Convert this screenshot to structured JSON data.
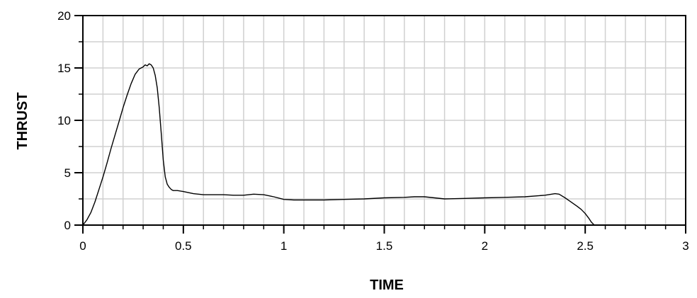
{
  "chart_data": {
    "type": "line",
    "title": "",
    "xlabel": "TIME",
    "ylabel": "THRUST",
    "xlim": [
      0,
      3
    ],
    "ylim": [
      0,
      20
    ],
    "x_ticks": [
      0,
      0.5,
      1,
      1.5,
      2,
      2.5,
      3
    ],
    "x_tick_labels": [
      "0",
      "0.5",
      "1",
      "1.5",
      "2",
      "2.5",
      "3"
    ],
    "y_ticks": [
      0,
      5,
      10,
      15,
      20
    ],
    "y_tick_labels": [
      "0",
      "5",
      "10",
      "15",
      "20"
    ],
    "x_grid_step": 0.1,
    "y_grid_step": 2.5,
    "grid": true,
    "legend": "none",
    "colors": {
      "line": "#000000",
      "grid": "#d0d0d0",
      "axes": "#000000"
    },
    "series": [
      {
        "x": [
          0,
          0.02,
          0.04,
          0.06,
          0.08,
          0.1,
          0.12,
          0.14,
          0.16,
          0.18,
          0.2,
          0.22,
          0.24,
          0.26,
          0.28,
          0.3,
          0.31,
          0.32,
          0.33,
          0.34,
          0.35,
          0.36,
          0.37,
          0.38,
          0.39,
          0.4,
          0.41,
          0.42,
          0.43,
          0.44,
          0.45,
          0.47,
          0.5,
          0.55,
          0.6,
          0.65,
          0.7,
          0.75,
          0.8,
          0.85,
          0.9,
          0.95,
          1.0,
          1.05,
          1.1,
          1.2,
          1.3,
          1.4,
          1.5,
          1.6,
          1.65,
          1.7,
          1.75,
          1.8,
          1.9,
          2.0,
          2.1,
          2.2,
          2.3,
          2.35,
          2.37,
          2.4,
          2.43,
          2.46,
          2.48,
          2.5,
          2.52,
          2.53,
          2.54,
          2.545
        ],
        "y": [
          0.0,
          0.5,
          1.2,
          2.2,
          3.4,
          4.6,
          5.9,
          7.3,
          8.6,
          9.9,
          11.2,
          12.4,
          13.5,
          14.4,
          14.9,
          15.1,
          15.3,
          15.2,
          15.4,
          15.3,
          15.0,
          14.3,
          13.1,
          11.2,
          8.8,
          6.2,
          4.6,
          3.9,
          3.6,
          3.4,
          3.3,
          3.3,
          3.2,
          3.0,
          2.9,
          2.9,
          2.9,
          2.85,
          2.85,
          2.95,
          2.9,
          2.7,
          2.45,
          2.4,
          2.4,
          2.4,
          2.45,
          2.5,
          2.6,
          2.65,
          2.7,
          2.7,
          2.6,
          2.5,
          2.55,
          2.6,
          2.65,
          2.7,
          2.85,
          3.0,
          2.95,
          2.6,
          2.2,
          1.8,
          1.5,
          1.1,
          0.6,
          0.3,
          0.1,
          0.0
        ]
      }
    ]
  }
}
